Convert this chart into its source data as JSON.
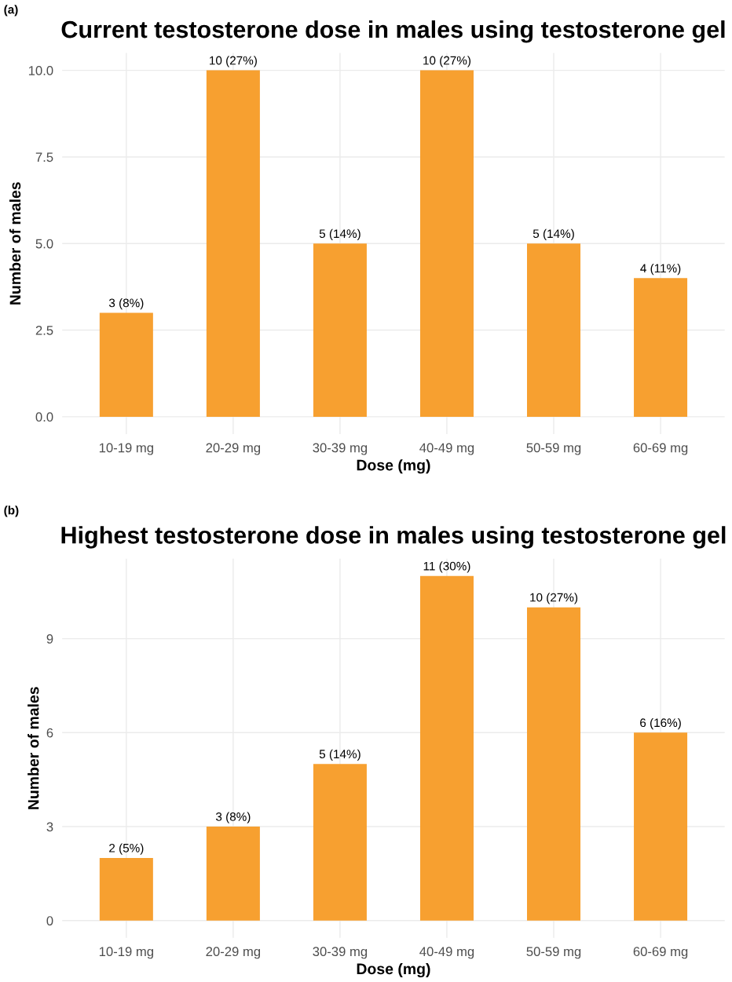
{
  "chart_data": [
    {
      "type": "bar",
      "title": "Current testosterone dose in males using testosterone gel",
      "xlabel": "Dose (mg)",
      "ylabel": "Number of males",
      "annotations": [
        "(a)"
      ],
      "categories": [
        "10-19 mg",
        "20-29 mg",
        "30-39 mg",
        "40-49 mg",
        "50-59 mg",
        "60-69 mg"
      ],
      "values": [
        3,
        10,
        5,
        10,
        5,
        4
      ],
      "color": "#f7a030",
      "value_labels": [
        "3 (8%)",
        "10 (27%)",
        "5 (14%)",
        "10 (27%)",
        "5 (14%)",
        "4 (11%)"
      ],
      "ylim": [
        -0.5,
        10.5
      ],
      "yticks": [
        {
          "value": 0,
          "label": "0.0"
        },
        {
          "value": 2.5,
          "label": "2.5"
        },
        {
          "value": 5,
          "label": "5.0"
        },
        {
          "value": 7.5,
          "label": "7.5"
        },
        {
          "value": 10,
          "label": "10.0"
        }
      ],
      "grid": true,
      "legend": false
    },
    {
      "type": "bar",
      "title": "Highest testosterone dose in males using testosterone gel",
      "xlabel": "Dose (mg)",
      "ylabel": "Number of males",
      "annotations": [
        "(b)"
      ],
      "categories": [
        "10-19 mg",
        "20-29 mg",
        "30-39 mg",
        "40-49 mg",
        "50-59 mg",
        "60-69 mg"
      ],
      "values": [
        2,
        3,
        5,
        11,
        10,
        6
      ],
      "color": "#f7a030",
      "value_labels": [
        "2 (5%)",
        "3 (8%)",
        "5 (14%)",
        "11 (30%)",
        "10 (27%)",
        "6 (16%)"
      ],
      "ylim": [
        -0.55,
        11.55
      ],
      "yticks": [
        0,
        3,
        6,
        9
      ],
      "grid": true,
      "legend": false
    }
  ]
}
